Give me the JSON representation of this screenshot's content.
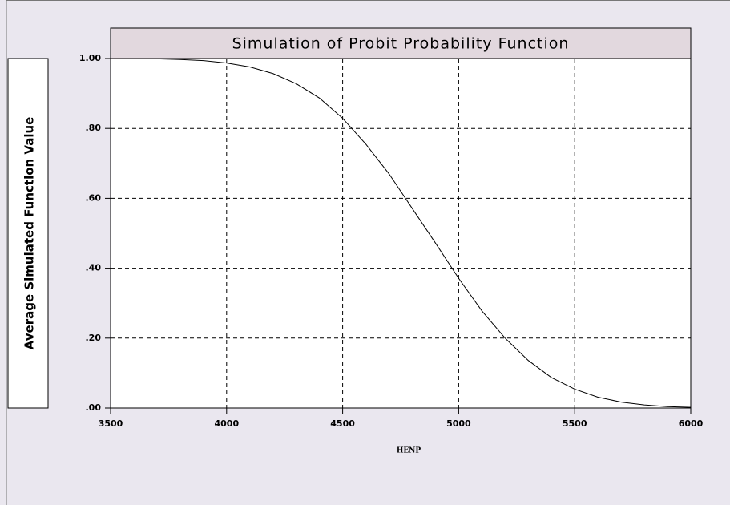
{
  "chart_data": {
    "type": "line",
    "title": "Simulation of Probit Probability Function",
    "x_label": "HENP",
    "y_label": "Average Simulated Function Value",
    "x": [
      3500,
      3600,
      3700,
      3800,
      3900,
      4000,
      4100,
      4200,
      4300,
      4400,
      4500,
      4600,
      4700,
      4800,
      4900,
      5000,
      5100,
      5200,
      5300,
      5400,
      5500,
      5600,
      5700,
      5800,
      5900,
      6000
    ],
    "series": [
      {
        "name": "Average Simulated Function Value",
        "color": "#000000",
        "values": [
          1.0,
          0.999,
          0.999,
          0.997,
          0.994,
          0.987,
          0.976,
          0.957,
          0.928,
          0.887,
          0.829,
          0.755,
          0.67,
          0.571,
          0.472,
          0.371,
          0.278,
          0.2,
          0.136,
          0.087,
          0.054,
          0.031,
          0.017,
          0.009,
          0.004,
          0.002
        ]
      }
    ],
    "xlim": [
      3500,
      6000
    ],
    "xticks": [
      3500,
      4000,
      4500,
      5000,
      5500,
      6000
    ],
    "ylim": [
      0,
      1
    ],
    "yticks": [
      {
        "value": 0,
        "label": ".00"
      },
      {
        "value": 0.2,
        "label": ".20"
      },
      {
        "value": 0.4,
        "label": ".40"
      },
      {
        "value": 0.6,
        "label": ".60"
      },
      {
        "value": 0.8,
        "label": ".80"
      },
      {
        "value": 1,
        "label": "1.00"
      }
    ],
    "grid": true
  }
}
